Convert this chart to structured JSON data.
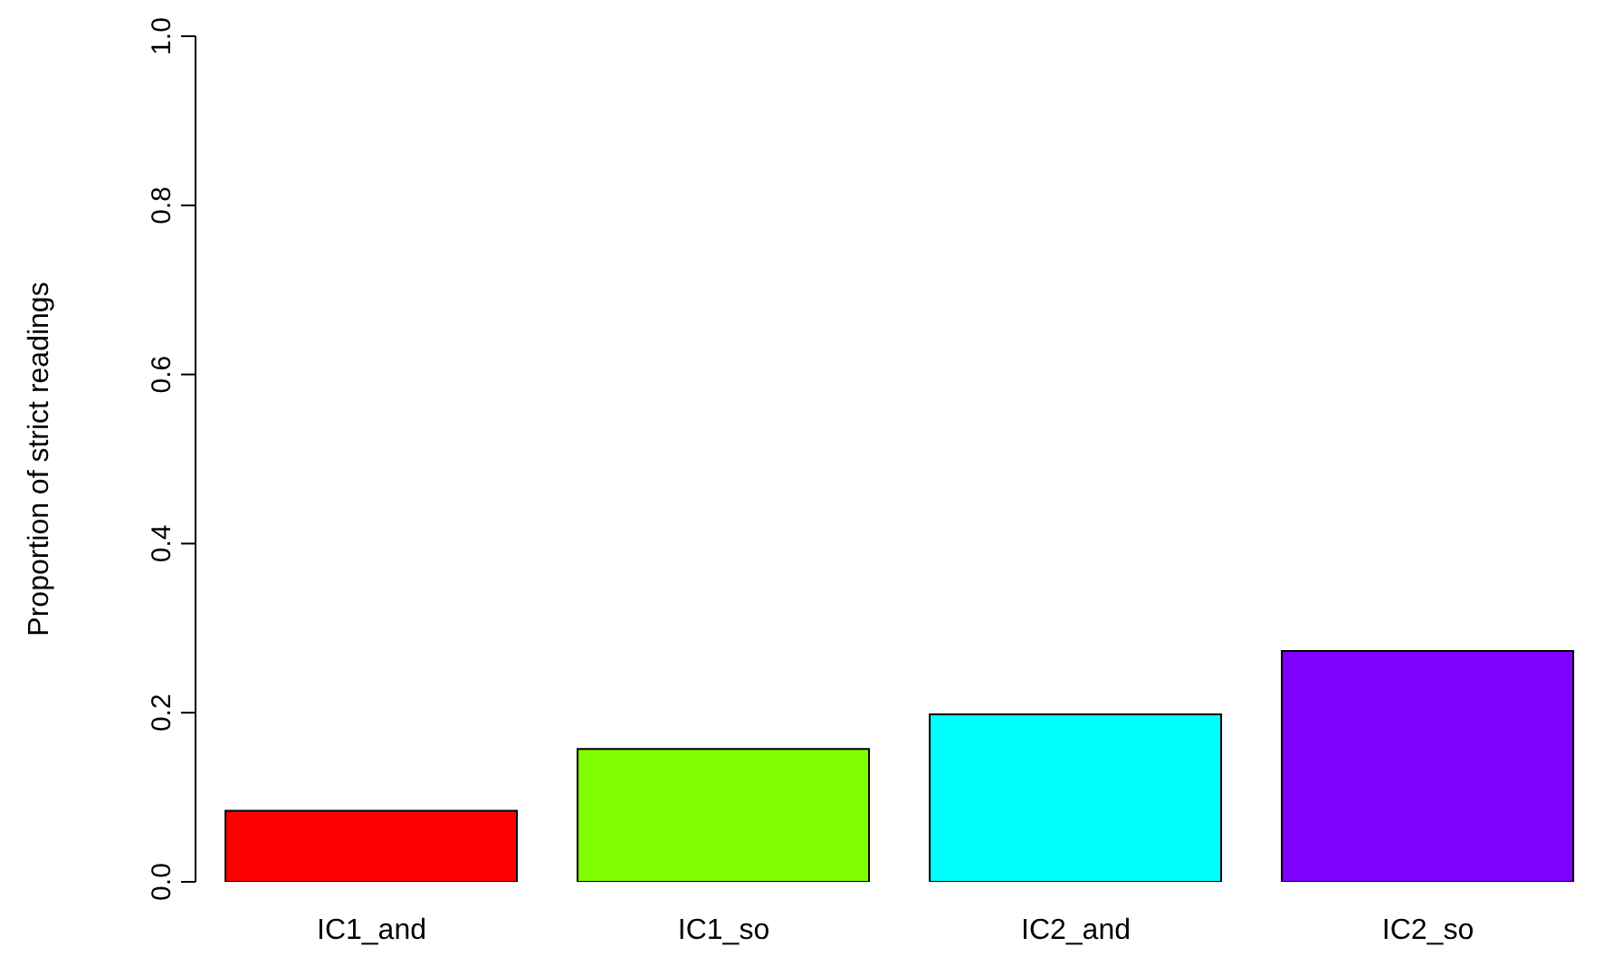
{
  "chart_data": {
    "type": "bar",
    "ylabel": "Proportion of strict readings",
    "categories": [
      "IC1_and",
      "IC1_so",
      "IC2_and",
      "IC2_so"
    ],
    "values": [
      0.084,
      0.157,
      0.198,
      0.273
    ],
    "colors": [
      "#ff0000",
      "#80ff00",
      "#00ffff",
      "#8000ff"
    ],
    "ylim": [
      0,
      1
    ],
    "yticks": [
      {
        "value": 0,
        "label": "0.0"
      },
      {
        "value": 0.2,
        "label": "0.2"
      },
      {
        "value": 0.4,
        "label": "0.4"
      },
      {
        "value": 0.6,
        "label": "0.6"
      },
      {
        "value": 0.8,
        "label": "0.8"
      },
      {
        "value": 1,
        "label": "1.0"
      }
    ],
    "grid": false,
    "legend": false
  }
}
